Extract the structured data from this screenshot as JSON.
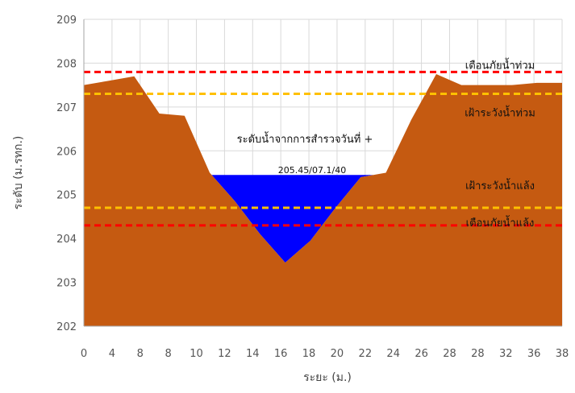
{
  "chart_data": {
    "type": "area",
    "title": "",
    "xlabel": "ระยะ (ม.)",
    "ylabel": "ระดับ (ม.รทก.)",
    "xlim": [
      0,
      38
    ],
    "ylim": [
      202,
      209
    ],
    "x_ticks": [
      "0",
      "4",
      "8",
      "8",
      "10",
      "12",
      "14",
      "16",
      "18",
      "20",
      "22",
      "24",
      "26",
      "28",
      "28",
      "32",
      "36",
      "38"
    ],
    "y_ticks": [
      "202",
      "203",
      "204",
      "205",
      "206",
      "207",
      "208",
      "209"
    ],
    "grid": true,
    "series": [
      {
        "kind": "ground",
        "color": "#c55a11",
        "x": [
          0,
          2,
          4,
          6,
          8,
          10,
          12,
          14,
          16,
          18,
          20,
          22,
          24,
          26,
          28,
          30,
          32,
          34,
          36,
          38
        ],
        "y": [
          207.5,
          207.6,
          207.7,
          206.85,
          206.8,
          205.5,
          204.85,
          204.1,
          203.45,
          203.95,
          204.7,
          205.4,
          205.5,
          206.7,
          207.75,
          207.5,
          207.5,
          207.5,
          207.55,
          207.55
        ]
      },
      {
        "kind": "water",
        "color": "#0000ff",
        "level": 205.45
      }
    ],
    "reference_lines": [
      {
        "label": "เตือนภัยน้ำท่วม",
        "y": 207.8,
        "color": "#ff0000"
      },
      {
        "label": "เฝ้าระวังน้ำท่วม",
        "y": 207.3,
        "color": "#ffc000"
      },
      {
        "label": "เฝ้าระวังน้ำแล้ง",
        "y": 204.7,
        "color": "#ffc000"
      },
      {
        "label": "เตือนภัยน้ำแล้ง",
        "y": 204.3,
        "color": "#ff0000"
      }
    ],
    "annotations": {
      "water_label": "ระดับน้ำจากการสำรวจวันที่ +",
      "water_value": "205.45/07.1/40"
    }
  }
}
